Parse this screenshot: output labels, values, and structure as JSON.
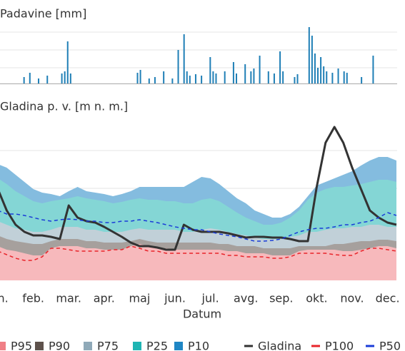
{
  "chart_data": [
    {
      "type": "bar",
      "title": "Padavine [mm]",
      "color": "#1f7fb6",
      "ylim": [
        0,
        80
      ],
      "values": [
        0,
        0,
        0,
        0,
        0,
        0,
        0,
        0,
        0,
        9,
        0,
        15,
        0,
        0,
        7,
        0,
        0,
        11,
        0,
        0,
        0,
        0,
        14,
        17,
        59,
        14,
        0,
        0,
        0,
        0,
        0,
        0,
        0,
        0,
        0,
        0,
        0,
        0,
        0,
        0,
        0,
        0,
        0,
        0,
        0,
        0,
        0,
        0,
        15,
        19,
        0,
        0,
        7,
        0,
        9,
        0,
        0,
        17,
        0,
        0,
        7,
        0,
        47,
        0,
        69,
        17,
        11,
        0,
        13,
        0,
        11,
        0,
        0,
        37,
        17,
        14,
        0,
        0,
        17,
        0,
        0,
        30,
        14,
        0,
        0,
        27,
        0,
        17,
        21,
        0,
        39,
        0,
        0,
        17,
        0,
        14,
        0,
        45,
        17,
        0,
        0,
        0,
        9,
        13,
        0,
        0,
        0,
        79,
        67,
        42,
        22,
        37,
        24,
        17,
        0,
        15,
        0,
        21,
        0,
        17,
        15,
        0,
        0,
        0,
        0,
        9,
        0,
        0,
        0,
        39,
        0,
        0,
        0,
        0,
        0,
        0,
        0,
        0
      ]
    },
    {
      "type": "area",
      "title": "Gladina p. v. [m n. m.]",
      "x_label": "Datum",
      "ylim": [
        0,
        233
      ],
      "categories": [
        "jan.",
        null,
        null,
        null,
        "feb.",
        null,
        null,
        null,
        "mar.",
        null,
        null,
        null,
        "apr.",
        null,
        null,
        null,
        "maj",
        null,
        null,
        null,
        "jun.",
        null,
        null,
        null,
        "jul.",
        null,
        null,
        null,
        "avg.",
        null,
        null,
        null,
        "sep.",
        null,
        null,
        null,
        "okt.",
        null,
        null,
        null,
        "nov.",
        null,
        null,
        null,
        "dec.",
        null
      ],
      "series": [
        {
          "name": "P95",
          "color": "#f07f86",
          "style": "band",
          "values": [
            48,
            43,
            41,
            38,
            35,
            35,
            45,
            48,
            48,
            48,
            45,
            45,
            43,
            43,
            43,
            48,
            51,
            48,
            45,
            45,
            43,
            43,
            43,
            43,
            43,
            43,
            41,
            41,
            38,
            38,
            38,
            35,
            35,
            35,
            41,
            43,
            43,
            43,
            43,
            41,
            41,
            43,
            45,
            48,
            48,
            45
          ]
        },
        {
          "name": "P90",
          "color": "#5e524c",
          "style": "band",
          "values": [
            63,
            58,
            55,
            53,
            51,
            51,
            55,
            58,
            58,
            58,
            55,
            55,
            53,
            53,
            53,
            55,
            58,
            55,
            53,
            53,
            53,
            53,
            53,
            53,
            53,
            51,
            51,
            48,
            48,
            48,
            45,
            45,
            45,
            45,
            48,
            48,
            48,
            48,
            51,
            51,
            53,
            55,
            55,
            57,
            57,
            55
          ]
        },
        {
          "name": "P75",
          "color": "#8fa9b8",
          "style": "band",
          "values": [
            83,
            78,
            73,
            71,
            68,
            68,
            71,
            75,
            75,
            75,
            71,
            71,
            68,
            68,
            68,
            71,
            73,
            71,
            71,
            71,
            71,
            68,
            68,
            71,
            73,
            71,
            68,
            65,
            63,
            60,
            58,
            58,
            58,
            61,
            63,
            68,
            68,
            71,
            73,
            73,
            75,
            75,
            78,
            78,
            75,
            75
          ]
        },
        {
          "name": "P25",
          "color": "#1fb5b3",
          "style": "band",
          "values": [
            143,
            135,
            125,
            118,
            111,
            108,
            111,
            113,
            115,
            118,
            115,
            113,
            111,
            108,
            110,
            113,
            115,
            113,
            113,
            111,
            111,
            108,
            108,
            113,
            115,
            111,
            103,
            95,
            88,
            83,
            78,
            78,
            81,
            88,
            98,
            113,
            123,
            128,
            131,
            131,
            133,
            135,
            138,
            141,
            141,
            138
          ]
        },
        {
          "name": "P10",
          "color": "#1f86c4",
          "style": "band",
          "values": [
            163,
            158,
            148,
            138,
            128,
            123,
            121,
            118,
            125,
            131,
            125,
            123,
            121,
            118,
            121,
            125,
            131,
            131,
            131,
            131,
            131,
            131,
            138,
            145,
            143,
            135,
            125,
            115,
            108,
            98,
            93,
            88,
            88,
            93,
            103,
            118,
            133,
            138,
            143,
            148,
            153,
            161,
            168,
            173,
            173,
            168
          ]
        },
        {
          "name": "Gladina",
          "color": "#333333",
          "style": "line",
          "values": [
            128,
            98,
            78,
            68,
            63,
            63,
            61,
            58,
            105,
            88,
            83,
            81,
            75,
            68,
            61,
            53,
            48,
            48,
            46,
            43,
            43,
            78,
            71,
            68,
            68,
            68,
            66,
            63,
            60,
            61,
            61,
            60,
            60,
            58,
            55,
            55,
            131,
            193,
            215,
            193,
            158,
            128,
            98,
            88,
            81,
            78
          ]
        },
        {
          "name": "P100",
          "color": "#e8242a",
          "style": "dashed",
          "values": [
            41,
            36,
            31,
            28,
            28,
            33,
            45,
            45,
            43,
            41,
            41,
            41,
            41,
            43,
            43,
            48,
            45,
            41,
            41,
            38,
            38,
            38,
            38,
            38,
            38,
            38,
            35,
            35,
            33,
            33,
            33,
            31,
            31,
            33,
            38,
            38,
            38,
            38,
            36,
            35,
            35,
            41,
            45,
            45,
            43,
            41
          ]
        },
        {
          "name": "P50",
          "color": "#1a3cd8",
          "style": "dashed",
          "values": [
            98,
            93,
            93,
            91,
            88,
            85,
            83,
            85,
            86,
            85,
            83,
            83,
            81,
            81,
            83,
            83,
            85,
            83,
            81,
            78,
            75,
            73,
            71,
            71,
            68,
            65,
            63,
            61,
            58,
            55,
            55,
            56,
            58,
            63,
            68,
            71,
            73,
            73,
            75,
            78,
            78,
            81,
            83,
            88,
            95,
            91
          ]
        }
      ]
    }
  ]
}
